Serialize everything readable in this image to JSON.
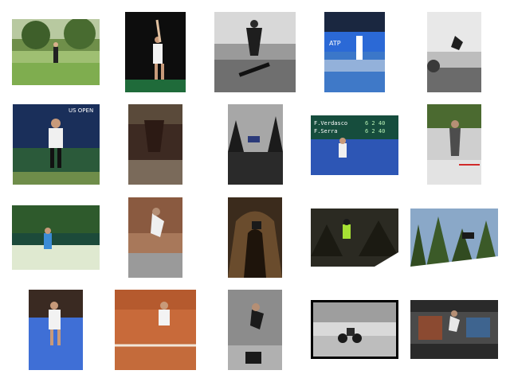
{
  "title": "",
  "images": [
    {
      "subject": "tennis player on grass park"
    },
    {
      "subject": "tennis serve at night"
    },
    {
      "subject": "skateboarder black and white"
    },
    {
      "subject": "tennis net court banner"
    },
    {
      "subject": "skateboarder jump sky"
    },
    {
      "subject": "tennis player backhand indoor"
    },
    {
      "subject": "skateboarder low angle"
    },
    {
      "subject": "skateboarder trees night"
    },
    {
      "subject": "tennis scoreboard player"
    },
    {
      "subject": "skateboarder street"
    },
    {
      "subject": "tennis player grass court"
    },
    {
      "subject": "skateboarder wall jump"
    },
    {
      "subject": "skateboarder ramp tunnel"
    },
    {
      "subject": "skier jump trees"
    },
    {
      "subject": "snowboarder jump forest"
    },
    {
      "subject": "tennis player blue court"
    },
    {
      "subject": "tennis player clay court"
    },
    {
      "subject": "skateboarder trick barrel"
    },
    {
      "subject": "motocross rider bw"
    },
    {
      "subject": "skateboarder graffiti wall"
    }
  ],
  "scoreboard": {
    "row1_name": "F.Verdasco",
    "row2_name": "F.Serra",
    "row1_score": "6 2 40",
    "row2_score": "6 2 40"
  },
  "banner_text": "US OPEN",
  "banner_text2": "ATP"
}
